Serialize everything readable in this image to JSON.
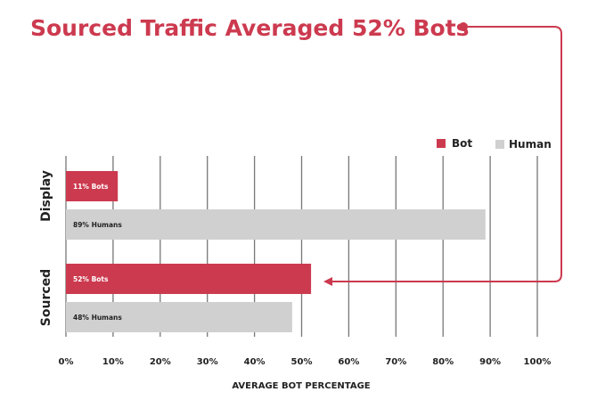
{
  "colors": {
    "bot": "#cc3a4f",
    "human": "#d0d0d0",
    "grid": "#777777",
    "accent": "#cc3a4f"
  },
  "chart_data": {
    "type": "bar",
    "orientation": "horizontal",
    "title": "Sourced Traffic Averaged 52% Bots",
    "xlabel": "AVERAGE BOT PERCENTAGE",
    "ylabel": "",
    "xlim": [
      0,
      100
    ],
    "grid": true,
    "legend_position": "top-right",
    "x_ticks": [
      "0%",
      "10%",
      "20%",
      "30%",
      "40%",
      "50%",
      "60%",
      "70%",
      "80%",
      "90%",
      "100%"
    ],
    "categories": [
      "Display",
      "Sourced"
    ],
    "series": [
      {
        "name": "Bot",
        "values": [
          11,
          52
        ],
        "labels": [
          "11% Bots",
          "52% Bots"
        ]
      },
      {
        "name": "Human",
        "values": [
          89,
          48
        ],
        "labels": [
          "89% Humans",
          "48% Humans"
        ]
      }
    ]
  }
}
